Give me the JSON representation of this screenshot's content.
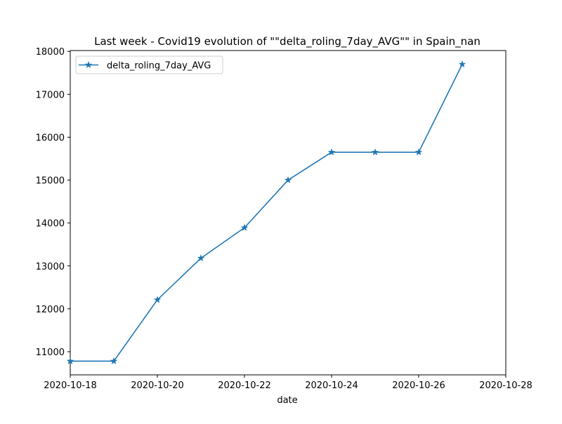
{
  "chart_data": {
    "type": "line",
    "title": "Last week - Covid19 evolution of  \"\"delta_roling_7day_AVG\"\"  in Spain_nan",
    "xlabel": "date",
    "ylabel": "",
    "x": [
      "2020-10-18",
      "2020-10-19",
      "2020-10-20",
      "2020-10-21",
      "2020-10-22",
      "2020-10-23",
      "2020-10-24",
      "2020-10-25",
      "2020-10-26",
      "2020-10-27"
    ],
    "series": [
      {
        "name": "delta_roling_7day_AVG",
        "values": [
          10780,
          10780,
          12210,
          13180,
          13890,
          15000,
          15650,
          15650,
          15650,
          17700
        ],
        "color": "#1f77b4",
        "marker": "star"
      }
    ],
    "xlim": [
      "2020-10-18",
      "2020-10-28"
    ],
    "ylim": [
      10460,
      18020
    ],
    "xticks": [
      "2020-10-18",
      "2020-10-20",
      "2020-10-22",
      "2020-10-24",
      "2020-10-26",
      "2020-10-28"
    ],
    "yticks": [
      11000,
      12000,
      13000,
      14000,
      15000,
      16000,
      17000,
      18000
    ],
    "grid": false,
    "legend": "top-left"
  }
}
